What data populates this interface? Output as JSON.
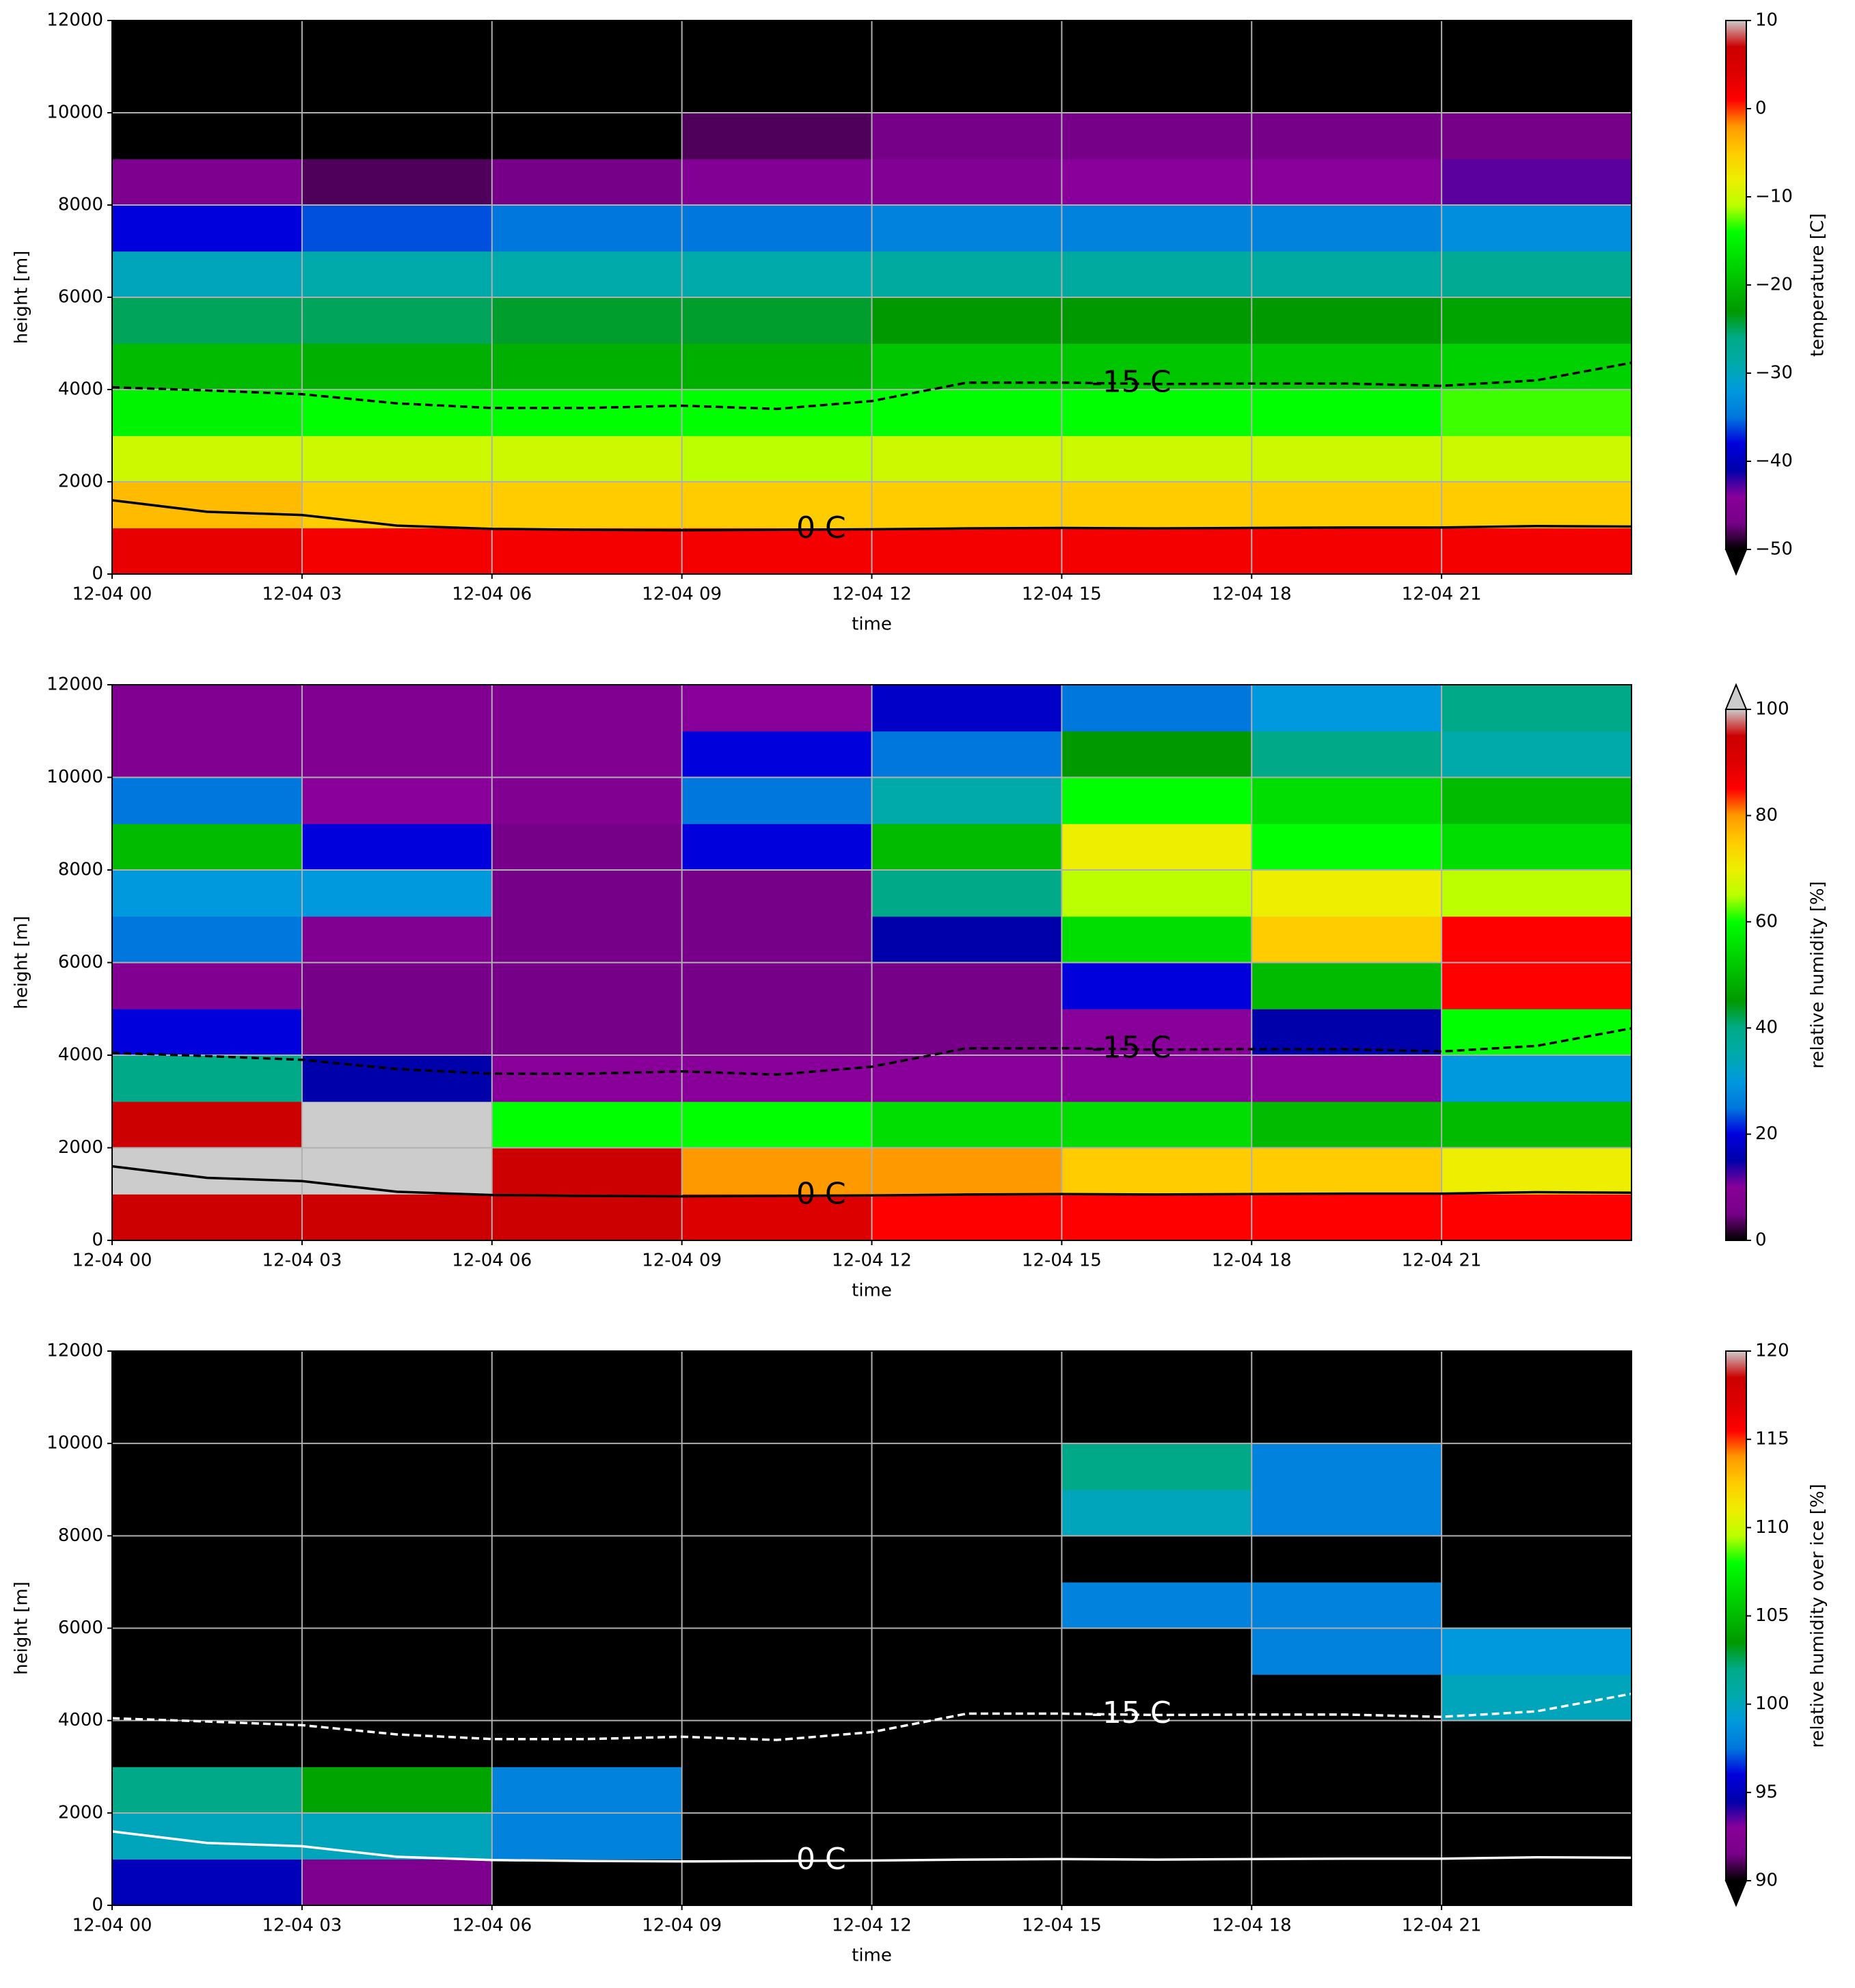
{
  "chart_data": [
    {
      "type": "heatmap",
      "xlabel": "time",
      "ylabel": "height [m]",
      "cmap": "nipy_spectral",
      "xlim": [
        0,
        24
      ],
      "xticks": [
        {
          "value": 0,
          "label": "12-04 00"
        },
        {
          "value": 3,
          "label": "12-04 03"
        },
        {
          "value": 6,
          "label": "12-04 06"
        },
        {
          "value": 9,
          "label": "12-04 09"
        },
        {
          "value": 12,
          "label": "12-04 12"
        },
        {
          "value": 15,
          "label": "12-04 15"
        },
        {
          "value": 18,
          "label": "12-04 18"
        },
        {
          "value": 21,
          "label": "12-04 21"
        }
      ],
      "ylim": [
        0,
        12000
      ],
      "yticks": [
        0,
        2000,
        4000,
        6000,
        8000,
        10000,
        12000
      ],
      "grid": true,
      "x": [
        1.5,
        4.5,
        7.5,
        10.5,
        13.5,
        16.5,
        19.5,
        22.5
      ],
      "y": [
        500,
        1500,
        2500,
        3500,
        4500,
        5500,
        6500,
        7500,
        8500,
        9500,
        10500,
        11500
      ],
      "z": [
        [
          3,
          2,
          2,
          2,
          2,
          2,
          2,
          2
        ],
        [
          -4,
          -5,
          -5,
          -5,
          -5,
          -5,
          -5,
          -5
        ],
        [
          -10,
          -10,
          -10,
          -11,
          -10,
          -10,
          -10,
          -10
        ],
        [
          -15,
          -14,
          -14,
          -14,
          -14,
          -14,
          -14,
          -13
        ],
        [
          -20,
          -21,
          -21,
          -21,
          -19,
          -19,
          -19,
          -18
        ],
        [
          -25,
          -25,
          -24,
          -24,
          -23,
          -23,
          -23,
          -22
        ],
        [
          -30,
          -29,
          -29,
          -29,
          -28,
          -28,
          -28,
          -27
        ],
        [
          -38,
          -36,
          -35,
          -35,
          -34,
          -34,
          -34,
          -33
        ],
        [
          -46,
          -48,
          -47,
          -45,
          -45,
          -44,
          -44,
          -43
        ],
        [
          -55,
          -55,
          -55,
          -48,
          -47,
          -47,
          -47,
          -47
        ],
        [
          -55,
          -55,
          -55,
          -55,
          -55,
          -55,
          -55,
          -55
        ],
        [
          -55,
          -55,
          -55,
          -55,
          -55,
          -55,
          -55,
          -55
        ]
      ],
      "colorbar": {
        "label": "temperature [C]",
        "clim": [
          -50,
          10
        ],
        "extend": "min",
        "ticks": [
          10,
          0,
          {
            "value": -10,
            "label": "−10"
          },
          {
            "value": -20,
            "label": "−20"
          },
          {
            "value": -30,
            "label": "−30"
          },
          {
            "value": -40,
            "label": "−40"
          },
          {
            "value": -50,
            "label": "−50"
          }
        ]
      },
      "contour_color": "#000000",
      "contours": [
        {
          "label": "0 C",
          "style": "solid",
          "label_x": 11.2,
          "x": [
            0,
            1.5,
            3,
            4.5,
            6,
            7.5,
            9,
            10.5,
            12,
            13.5,
            15,
            16.5,
            18,
            19.5,
            21,
            22.5,
            24
          ],
          "values": [
            1600,
            1350,
            1280,
            1050,
            980,
            960,
            950,
            960,
            970,
            990,
            1000,
            990,
            1000,
            1010,
            1010,
            1040,
            1030
          ]
        },
        {
          "label": "-15 C",
          "style": "dashed",
          "label_x": 16.1,
          "x": [
            0,
            1.5,
            3,
            4.5,
            6,
            7.5,
            9,
            10.5,
            12,
            13.5,
            15,
            16.5,
            18,
            19.5,
            21,
            22.5,
            24
          ],
          "values": [
            4050,
            3980,
            3900,
            3700,
            3600,
            3600,
            3650,
            3580,
            3750,
            4150,
            4150,
            4120,
            4130,
            4130,
            4080,
            4200,
            4580
          ]
        }
      ]
    },
    {
      "type": "heatmap",
      "xlabel": "time",
      "ylabel": "height [m]",
      "cmap": "nipy_spectral",
      "xlim": [
        0,
        24
      ],
      "xticks": [
        {
          "value": 0,
          "label": "12-04 00"
        },
        {
          "value": 3,
          "label": "12-04 03"
        },
        {
          "value": 6,
          "label": "12-04 06"
        },
        {
          "value": 9,
          "label": "12-04 09"
        },
        {
          "value": 12,
          "label": "12-04 12"
        },
        {
          "value": 15,
          "label": "12-04 15"
        },
        {
          "value": 18,
          "label": "12-04 18"
        },
        {
          "value": 21,
          "label": "12-04 21"
        }
      ],
      "ylim": [
        0,
        12000
      ],
      "yticks": [
        0,
        2000,
        4000,
        6000,
        8000,
        10000,
        12000
      ],
      "grid": true,
      "x": [
        1.5,
        4.5,
        7.5,
        10.5,
        13.5,
        16.5,
        19.5,
        22.5
      ],
      "y": [
        500,
        1500,
        2500,
        3500,
        4500,
        5500,
        6500,
        7500,
        8500,
        9500,
        10500,
        11500
      ],
      "z": [
        [
          95,
          95,
          95,
          90,
          85,
          85,
          85,
          85
        ],
        [
          100,
          100,
          95,
          80,
          80,
          75,
          75,
          70
        ],
        [
          95,
          100,
          60,
          60,
          55,
          55,
          50,
          50
        ],
        [
          40,
          15,
          10,
          10,
          10,
          10,
          10,
          30
        ],
        [
          20,
          5,
          5,
          5,
          5,
          10,
          15,
          60
        ],
        [
          8,
          5,
          5,
          5,
          5,
          20,
          50,
          85
        ],
        [
          25,
          8,
          5,
          5,
          15,
          55,
          75,
          85
        ],
        [
          30,
          30,
          5,
          5,
          40,
          65,
          70,
          65
        ],
        [
          50,
          20,
          5,
          20,
          50,
          70,
          60,
          55
        ],
        [
          25,
          10,
          8,
          25,
          35,
          60,
          55,
          50
        ],
        [
          8,
          8,
          8,
          20,
          25,
          45,
          40,
          35
        ],
        [
          8,
          8,
          8,
          10,
          18,
          25,
          30,
          40
        ]
      ],
      "colorbar": {
        "label": "relative humidity [%]",
        "clim": [
          0,
          100
        ],
        "extend": "max",
        "ticks": [
          0,
          20,
          40,
          60,
          80,
          100
        ]
      },
      "contour_color": "#000000",
      "contours": [
        {
          "label": "0 C",
          "style": "solid",
          "label_x": 11.2,
          "x": [
            0,
            1.5,
            3,
            4.5,
            6,
            7.5,
            9,
            10.5,
            12,
            13.5,
            15,
            16.5,
            18,
            19.5,
            21,
            22.5,
            24
          ],
          "values": [
            1600,
            1350,
            1280,
            1050,
            980,
            960,
            950,
            960,
            970,
            990,
            1000,
            990,
            1000,
            1010,
            1010,
            1040,
            1030
          ]
        },
        {
          "label": "-15 C",
          "style": "dashed",
          "label_x": 16.1,
          "x": [
            0,
            1.5,
            3,
            4.5,
            6,
            7.5,
            9,
            10.5,
            12,
            13.5,
            15,
            16.5,
            18,
            19.5,
            21,
            22.5,
            24
          ],
          "values": [
            4050,
            3980,
            3900,
            3700,
            3600,
            3600,
            3650,
            3580,
            3750,
            4150,
            4150,
            4120,
            4130,
            4130,
            4080,
            4200,
            4580
          ]
        }
      ]
    },
    {
      "type": "heatmap",
      "xlabel": "time",
      "ylabel": "height [m]",
      "cmap": "nipy_spectral",
      "xlim": [
        0,
        24
      ],
      "xticks": [
        {
          "value": 0,
          "label": "12-04 00"
        },
        {
          "value": 3,
          "label": "12-04 03"
        },
        {
          "value": 6,
          "label": "12-04 06"
        },
        {
          "value": 9,
          "label": "12-04 09"
        },
        {
          "value": 12,
          "label": "12-04 12"
        },
        {
          "value": 15,
          "label": "12-04 15"
        },
        {
          "value": 18,
          "label": "12-04 18"
        },
        {
          "value": 21,
          "label": "12-04 21"
        }
      ],
      "ylim": [
        0,
        12000
      ],
      "yticks": [
        0,
        2000,
        4000,
        6000,
        8000,
        10000,
        12000
      ],
      "grid": true,
      "x": [
        1.5,
        4.5,
        7.5,
        10.5,
        13.5,
        16.5,
        19.5,
        22.5
      ],
      "y": [
        500,
        1500,
        2500,
        3500,
        4500,
        5500,
        6500,
        7500,
        8500,
        9500,
        10500,
        11500
      ],
      "z": [
        [
          95,
          92,
          85,
          85,
          85,
          85,
          85,
          85
        ],
        [
          100,
          100,
          98,
          85,
          85,
          85,
          85,
          85
        ],
        [
          102,
          104,
          98,
          85,
          85,
          85,
          85,
          85
        ],
        [
          85,
          85,
          85,
          85,
          85,
          85,
          85,
          85
        ],
        [
          85,
          85,
          85,
          85,
          85,
          85,
          85,
          100
        ],
        [
          85,
          85,
          85,
          85,
          85,
          85,
          98,
          99
        ],
        [
          85,
          85,
          85,
          85,
          85,
          98,
          98,
          85
        ],
        [
          85,
          85,
          85,
          85,
          85,
          85,
          85,
          85
        ],
        [
          85,
          85,
          85,
          85,
          85,
          100,
          98,
          85
        ],
        [
          85,
          85,
          85,
          85,
          85,
          102,
          98,
          85
        ],
        [
          85,
          85,
          85,
          85,
          85,
          85,
          85,
          85
        ],
        [
          85,
          85,
          85,
          85,
          85,
          85,
          85,
          85
        ]
      ],
      "colorbar": {
        "label": "relative humidity over ice [%]",
        "clim": [
          90,
          120
        ],
        "extend": "min",
        "ticks": [
          90,
          95,
          100,
          105,
          110,
          115,
          120
        ]
      },
      "contour_color": "#ffffff",
      "contours": [
        {
          "label": "0 C",
          "style": "solid",
          "label_x": 11.2,
          "x": [
            0,
            1.5,
            3,
            4.5,
            6,
            7.5,
            9,
            10.5,
            12,
            13.5,
            15,
            16.5,
            18,
            19.5,
            21,
            22.5,
            24
          ],
          "values": [
            1600,
            1350,
            1280,
            1050,
            980,
            960,
            950,
            960,
            970,
            990,
            1000,
            990,
            1000,
            1010,
            1010,
            1040,
            1030
          ]
        },
        {
          "label": "-15 C",
          "style": "dashed",
          "label_x": 16.1,
          "x": [
            0,
            1.5,
            3,
            4.5,
            6,
            7.5,
            9,
            10.5,
            12,
            13.5,
            15,
            16.5,
            18,
            19.5,
            21,
            22.5,
            24
          ],
          "values": [
            4050,
            3980,
            3900,
            3700,
            3600,
            3600,
            3650,
            3580,
            3750,
            4150,
            4150,
            4120,
            4130,
            4130,
            4080,
            4200,
            4580
          ]
        }
      ]
    }
  ]
}
